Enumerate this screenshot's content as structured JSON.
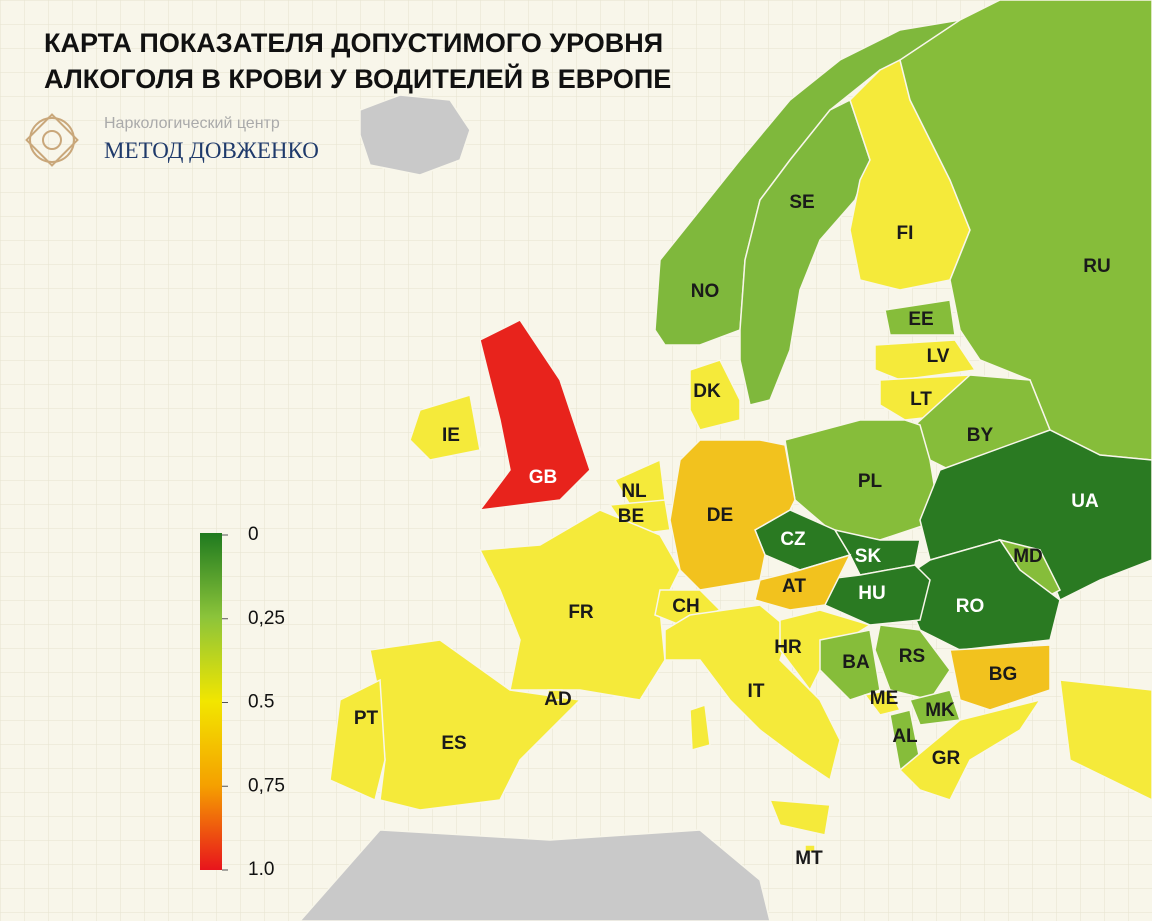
{
  "header": {
    "title_lines": [
      "КАРТА ПОКАЗАТЕЛЯ ДОПУСТИМОГО УРОВНЯ",
      "АЛКОГОЛЯ В КРОВИ У ВОДИТЕЛЕЙ В ЕВРОПЕ"
    ]
  },
  "logo": {
    "subtitle": "Наркологический центр",
    "name": "МЕТОД ДОВЖЕНКО"
  },
  "legend": {
    "range": [
      0,
      1
    ],
    "ticks": [
      0,
      {
        "value": 0.25,
        "label": "0,25"
      },
      0.5,
      {
        "value": 0.75,
        "label": "0,75"
      },
      {
        "value": 1,
        "label": "1.0"
      }
    ],
    "colors": [
      "#1f7a1f",
      "#8cc43a",
      "#f2e600",
      "#f5a000",
      "#e8141c"
    ]
  },
  "countries": [
    {
      "code": "NO",
      "color": "#7fb83c"
    },
    {
      "code": "SE",
      "color": "#7fb83c"
    },
    {
      "code": "FI",
      "color": "#f5ea3a"
    },
    {
      "code": "RU",
      "color": "#86bd3a"
    },
    {
      "code": "EE",
      "color": "#86bd3a"
    },
    {
      "code": "LV",
      "color": "#f5ea3a"
    },
    {
      "code": "LT",
      "color": "#f5ea3a"
    },
    {
      "code": "BY",
      "color": "#86bd3a"
    },
    {
      "code": "PL",
      "color": "#86bd3a"
    },
    {
      "code": "UA",
      "color": "#2a7a22"
    },
    {
      "code": "MD",
      "color": "#86bd3a"
    },
    {
      "code": "RO",
      "color": "#2a7a22"
    },
    {
      "code": "CZ",
      "color": "#2a7a22"
    },
    {
      "code": "SK",
      "color": "#2a7a22"
    },
    {
      "code": "HU",
      "color": "#2a7a22"
    },
    {
      "code": "AT",
      "color": "#f2c21e"
    },
    {
      "code": "DE",
      "color": "#f2c21e"
    },
    {
      "code": "DK",
      "color": "#f5ea3a"
    },
    {
      "code": "NL",
      "color": "#f5ea3a"
    },
    {
      "code": "BE",
      "color": "#f5ea3a"
    },
    {
      "code": "FR",
      "color": "#f5ea3a"
    },
    {
      "code": "CH",
      "color": "#f5ea3a"
    },
    {
      "code": "IT",
      "color": "#f5ea3a"
    },
    {
      "code": "ES",
      "color": "#f5ea3a"
    },
    {
      "code": "PT",
      "color": "#f5ea3a"
    },
    {
      "code": "AD",
      "color": "#f5ea3a"
    },
    {
      "code": "HR",
      "color": "#f5ea3a"
    },
    {
      "code": "BA",
      "color": "#86bd3a"
    },
    {
      "code": "RS",
      "color": "#86bd3a"
    },
    {
      "code": "ME",
      "color": "#f5ea3a"
    },
    {
      "code": "AL",
      "color": "#86bd3a"
    },
    {
      "code": "MK",
      "color": "#86bd3a"
    },
    {
      "code": "BG",
      "color": "#f2c21e"
    },
    {
      "code": "GR",
      "color": "#f5ea3a"
    },
    {
      "code": "IE",
      "color": "#f5ea3a"
    },
    {
      "code": "GB",
      "color": "#e8231c"
    },
    {
      "code": "MT",
      "color": "#f5ea3a"
    }
  ]
}
